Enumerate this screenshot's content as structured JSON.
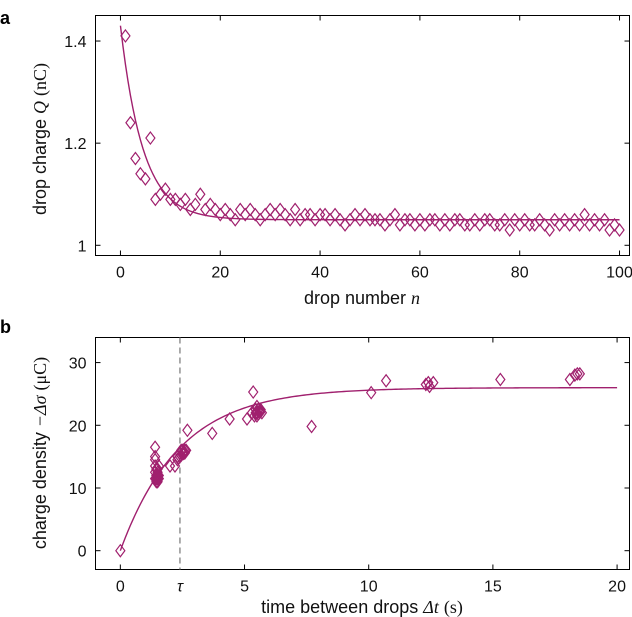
{
  "colors": {
    "series": "#a0206e",
    "axis": "#000000",
    "dashed": "#808080"
  },
  "chart_data": [
    {
      "panel": "a",
      "type": "scatter",
      "xlabel": "drop number",
      "xlabel_symbol": "n",
      "ylabel": "drop charge",
      "ylabel_symbol": "Q",
      "ylabel_unit": "(nC)",
      "xlim": [
        -5,
        102
      ],
      "ylim": [
        0.98,
        1.45
      ],
      "xticks": [
        0,
        20,
        40,
        60,
        80,
        100
      ],
      "yticks": [
        1,
        1.2,
        1.4
      ],
      "ytick_labels": [
        "1",
        "1.2",
        "1.4"
      ],
      "marker": "diamond-open",
      "grid": false,
      "series": [
        {
          "x": [
            1,
            2,
            3,
            4,
            5,
            6,
            7,
            8,
            9,
            10,
            11,
            12,
            13,
            14,
            15,
            16,
            17,
            18,
            19,
            20,
            21,
            22,
            23,
            24,
            25,
            26,
            27,
            28,
            29,
            30,
            31,
            32,
            33,
            34,
            35,
            36,
            37,
            38,
            39,
            40,
            41,
            42,
            43,
            44,
            45,
            46,
            47,
            48,
            49,
            50,
            51,
            52,
            53,
            54,
            55,
            56,
            57,
            58,
            59,
            60,
            61,
            62,
            63,
            64,
            65,
            66,
            67,
            68,
            69,
            70,
            71,
            72,
            73,
            74,
            75,
            76,
            77,
            78,
            79,
            80,
            81,
            82,
            83,
            84,
            85,
            86,
            87,
            88,
            89,
            90,
            91,
            92,
            93,
            94,
            95,
            96,
            97,
            98,
            99,
            100
          ],
          "y": [
            1.41,
            1.24,
            1.17,
            1.14,
            1.13,
            1.21,
            1.09,
            1.1,
            1.11,
            1.09,
            1.09,
            1.08,
            1.09,
            1.07,
            1.08,
            1.1,
            1.07,
            1.08,
            1.07,
            1.06,
            1.07,
            1.06,
            1.05,
            1.07,
            1.06,
            1.07,
            1.06,
            1.05,
            1.06,
            1.07,
            1.06,
            1.07,
            1.06,
            1.05,
            1.07,
            1.05,
            1.06,
            1.06,
            1.05,
            1.06,
            1.06,
            1.05,
            1.06,
            1.05,
            1.04,
            1.05,
            1.06,
            1.05,
            1.06,
            1.05,
            1.05,
            1.05,
            1.04,
            1.05,
            1.06,
            1.04,
            1.05,
            1.05,
            1.04,
            1.05,
            1.04,
            1.05,
            1.05,
            1.04,
            1.05,
            1.04,
            1.05,
            1.05,
            1.04,
            1.04,
            1.05,
            1.04,
            1.05,
            1.05,
            1.04,
            1.04,
            1.05,
            1.03,
            1.05,
            1.04,
            1.05,
            1.04,
            1.04,
            1.05,
            1.04,
            1.03,
            1.05,
            1.04,
            1.05,
            1.04,
            1.05,
            1.04,
            1.06,
            1.04,
            1.05,
            1.04,
            1.05,
            1.03,
            1.04,
            1.03
          ]
        }
      ],
      "fit": {
        "type": "exponential",
        "x": [
          0,
          100
        ],
        "y0": 1.43,
        "yinf": 1.05,
        "scale": 4.5
      }
    },
    {
      "panel": "b",
      "type": "scatter",
      "xlabel": "time between drops",
      "xlabel_symbol": "Δt",
      "xlabel_unit": "(s)",
      "ylabel": "charge density",
      "ylabel_symbol": "−Δσ",
      "ylabel_unit": "(μC)",
      "xlim": [
        -1,
        20.5
      ],
      "ylim": [
        -3,
        34
      ],
      "xticks": [
        0,
        5,
        10,
        15,
        20
      ],
      "yticks": [
        0,
        10,
        20,
        30
      ],
      "vline": {
        "x": 2.4,
        "label": "τ"
      },
      "marker": "diamond-open",
      "grid": false,
      "series": [
        {
          "x": [
            0,
            1.4,
            1.4,
            1.4,
            1.4,
            1.4,
            1.4,
            1.45,
            1.45,
            1.45,
            1.45,
            1.5,
            1.5,
            1.5,
            1.5,
            1.5,
            1.5,
            1.55,
            1.55,
            1.55,
            2,
            2.2,
            2.3,
            2.3,
            2.35,
            2.4,
            2.4,
            2.45,
            2.45,
            2.5,
            2.5,
            2.55,
            2.55,
            2.6,
            2.6,
            2.65,
            2.7,
            3.7,
            4.4,
            5.1,
            5.3,
            5.35,
            5.4,
            5.45,
            5.45,
            5.5,
            5.5,
            5.5,
            5.55,
            5.55,
            5.6,
            5.6,
            5.65,
            5.65,
            5.7,
            7.7,
            10.1,
            10.7,
            12.3,
            12.4,
            12.45,
            12.6,
            15.3,
            18.1,
            18.3,
            18.4,
            18.5
          ],
          "y": [
            0,
            16.5,
            15,
            14.5,
            13.5,
            12.5,
            11.5,
            11,
            11.5,
            12,
            13,
            12,
            12.5,
            11.5,
            11,
            12,
            13,
            11.5,
            12,
            13.5,
            13.5,
            13.5,
            14.5,
            15,
            14.8,
            15.5,
            15,
            16,
            15.2,
            15.5,
            16,
            15.8,
            15.5,
            16,
            15.6,
            16,
            19.2,
            18.7,
            21,
            21,
            22,
            25.3,
            21.5,
            22.5,
            22,
            23,
            22,
            21.5,
            22.5,
            21.8,
            22.3,
            22,
            22.5,
            22.2,
            22,
            19.8,
            25.2,
            27.1,
            26.5,
            26.8,
            26.2,
            26.8,
            27.3,
            27.3,
            28,
            28.2,
            28.2
          ]
        }
      ],
      "fit": {
        "type": "exponential-rise",
        "x": [
          0,
          20
        ],
        "yinf": 26,
        "tau": 2.4
      }
    }
  ]
}
